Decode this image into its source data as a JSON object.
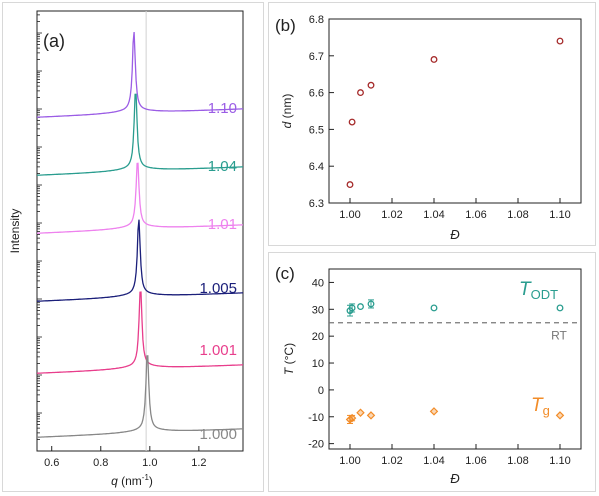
{
  "chart_data": [
    {
      "type": "line",
      "panel_label": "(a)",
      "xlabel_var": "q",
      "xlabel_unit": "(nm",
      "xlabel_unit_sup": "-1",
      "xlabel_unit_close": ")",
      "ylabel": "Intensity",
      "xlim": [
        0.54,
        1.38
      ],
      "xticks": [
        0.6,
        0.8,
        1.0,
        1.2
      ],
      "xticklabels": [
        "0.6",
        "0.8",
        "1.0",
        "1.2"
      ],
      "yscale": "log",
      "reference_line_q": 0.985,
      "series": [
        {
          "name": "1.10",
          "color": "#9b5de5",
          "peak_q": 0.935
        },
        {
          "name": "1.04",
          "color": "#2a9d8f",
          "peak_q": 0.942
        },
        {
          "name": "1.01",
          "color": "#ee82ee",
          "peak_q": 0.95
        },
        {
          "name": "1.005",
          "color": "#1b1f7a",
          "peak_q": 0.955
        },
        {
          "name": "1.001",
          "color": "#e83e8c",
          "peak_q": 0.962
        },
        {
          "name": "1.000",
          "color": "#888888",
          "peak_q": 0.99
        }
      ]
    },
    {
      "type": "scatter",
      "panel_label": "(b)",
      "xlabel": "Đ",
      "ylabel_var": "d",
      "ylabel_unit": "(nm)",
      "xlim": [
        0.99,
        1.11
      ],
      "ylim": [
        6.3,
        6.8
      ],
      "xticks": [
        1.0,
        1.02,
        1.04,
        1.06,
        1.08,
        1.1
      ],
      "xticklabels": [
        "1.00",
        "1.02",
        "1.04",
        "1.06",
        "1.08",
        "1.10"
      ],
      "yticks": [
        6.3,
        6.4,
        6.5,
        6.6,
        6.7,
        6.8
      ],
      "yticklabels": [
        "6.3",
        "6.4",
        "6.5",
        "6.6",
        "6.7",
        "6.8"
      ],
      "color": "#a52a2a",
      "x": [
        1.0,
        1.001,
        1.005,
        1.01,
        1.04,
        1.1
      ],
      "y": [
        6.35,
        6.52,
        6.6,
        6.62,
        6.69,
        6.74
      ]
    },
    {
      "type": "scatter",
      "panel_label": "(c)",
      "xlabel": "Đ",
      "ylabel_var": "T",
      "ylabel_unit": "(°C)",
      "xlim": [
        0.99,
        1.11
      ],
      "ylim": [
        -22,
        45
      ],
      "xticks": [
        1.0,
        1.02,
        1.04,
        1.06,
        1.08,
        1.1
      ],
      "xticklabels": [
        "1.00",
        "1.02",
        "1.04",
        "1.06",
        "1.08",
        "1.10"
      ],
      "yticks": [
        -20,
        -10,
        0,
        10,
        20,
        30,
        40
      ],
      "yticklabels": [
        "-20",
        "-10",
        "0",
        "10",
        "20",
        "30",
        "40"
      ],
      "reference_line": {
        "label": "RT",
        "y": 25,
        "color": "#777777"
      },
      "series": [
        {
          "name_main": "T",
          "name_sub": "ODT",
          "marker": "circle",
          "color": "#2a9d8f",
          "x": [
            1.0,
            1.001,
            1.005,
            1.01,
            1.04,
            1.1
          ],
          "y": [
            29.5,
            30.5,
            31.0,
            32.0,
            30.5,
            30.5
          ],
          "err": [
            2.0,
            1.5,
            0,
            1.5,
            0,
            0
          ]
        },
        {
          "name_main": "T",
          "name_sub": "g",
          "marker": "diamond",
          "color": "#f28c28",
          "x": [
            1.0,
            1.001,
            1.005,
            1.01,
            1.04,
            1.1
          ],
          "y": [
            -11.0,
            -10.5,
            -8.5,
            -9.5,
            -8.0,
            -9.5
          ],
          "err": [
            1.5,
            1.0,
            0,
            0,
            0,
            0
          ]
        }
      ]
    }
  ]
}
